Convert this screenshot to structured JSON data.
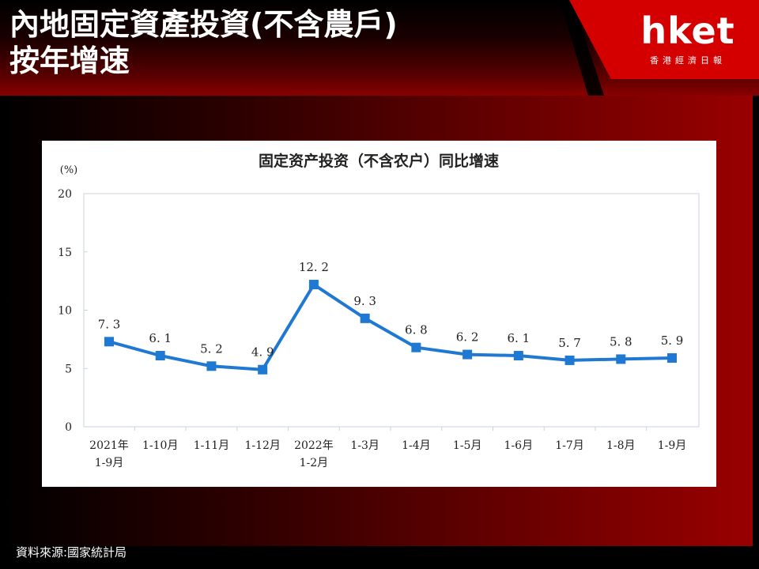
{
  "header": {
    "title": "內地固定資產投資(不含農戶)\n按年增速",
    "logo": "hket",
    "logo_sub": "香港經濟日報"
  },
  "source": "資料來源:國家統計局",
  "colors": {
    "header_red": "#d40000",
    "series_blue": "#1f78d1",
    "background_red": "#990000"
  },
  "chart_data": {
    "type": "line",
    "title": "固定资产投资（不含农户）同比增速",
    "ylabel": "(%)",
    "ylim": [
      0,
      20
    ],
    "yticks": [
      0,
      5,
      10,
      15,
      20
    ],
    "grid": false,
    "categories": [
      [
        "2021年",
        "1-9月"
      ],
      [
        "1-10月"
      ],
      [
        "1-11月"
      ],
      [
        "1-12月"
      ],
      [
        "2022年",
        "1-2月"
      ],
      [
        "1-3月"
      ],
      [
        "1-4月"
      ],
      [
        "1-5月"
      ],
      [
        "1-6月"
      ],
      [
        "1-7月"
      ],
      [
        "1-8月"
      ],
      [
        "1-9月"
      ]
    ],
    "values": [
      7.3,
      6.1,
      5.2,
      4.9,
      12.2,
      9.3,
      6.8,
      6.2,
      6.1,
      5.7,
      5.8,
      5.9
    ],
    "data_labels": [
      "7. 3",
      "6. 1",
      "5. 2",
      "4. 9",
      "12. 2",
      "9. 3",
      "6. 8",
      "6. 2",
      "6. 1",
      "5. 7",
      "5. 8",
      "5. 9"
    ]
  }
}
